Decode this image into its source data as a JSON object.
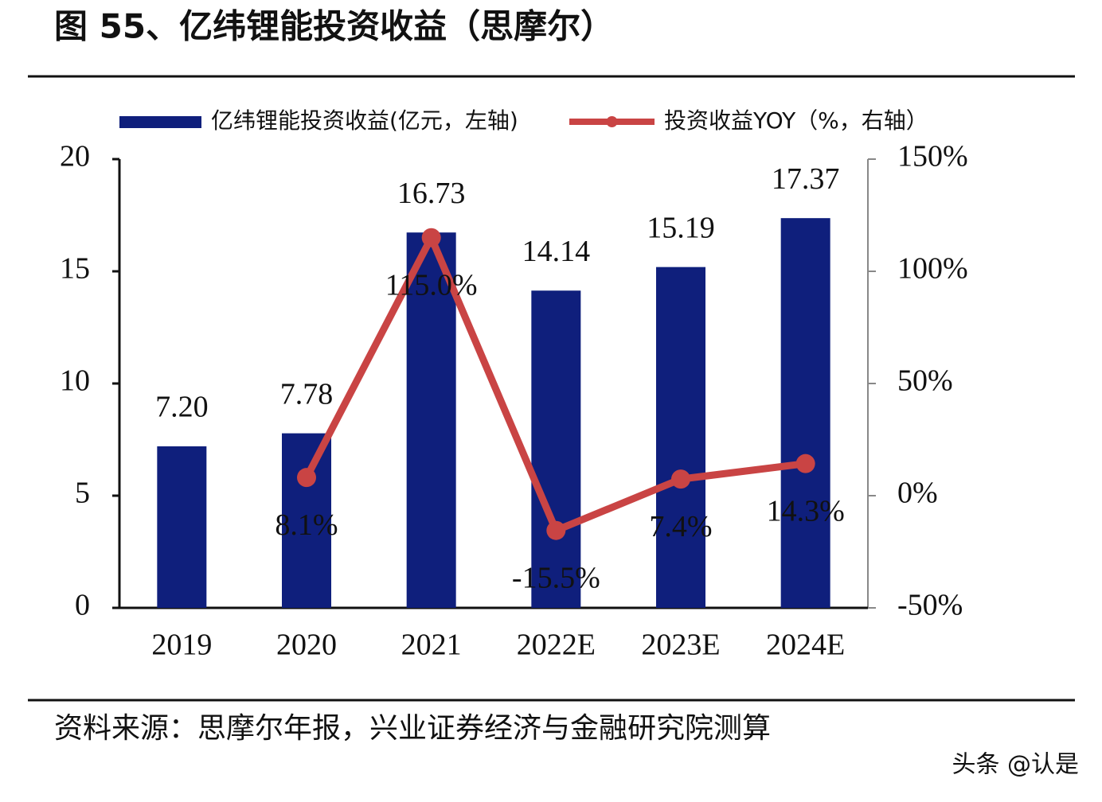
{
  "chart_data": {
    "type": "bar",
    "title": "图 55、亿纬锂能投资收益（思摩尔）",
    "categories": [
      "2019",
      "2020",
      "2021",
      "2022E",
      "2023E",
      "2024E"
    ],
    "series": [
      {
        "name": "亿纬锂能投资收益(亿元，左轴)",
        "type": "bar",
        "color": "#0f1f7c",
        "values": [
          7.2,
          7.78,
          16.73,
          14.14,
          15.19,
          17.37
        ],
        "value_labels": [
          "7.20",
          "7.78",
          "16.73",
          "14.14",
          "15.19",
          "17.37"
        ]
      },
      {
        "name": "投资收益YOY（%，右轴）",
        "type": "line",
        "axis": "y2",
        "color": "#c94444",
        "values": [
          null,
          8.1,
          115.0,
          -15.5,
          7.4,
          14.3
        ],
        "value_labels": [
          null,
          "8.1%",
          "115.0%",
          "-15.5%",
          "7.4%",
          "14.3%"
        ]
      }
    ],
    "ylim": [
      0,
      20
    ],
    "yticks": [
      0,
      5,
      10,
      15,
      20
    ],
    "y2lim": [
      -50,
      150
    ],
    "y2ticks": [
      {
        "value": -50,
        "label": "-50%"
      },
      {
        "value": 0,
        "label": "0%"
      },
      {
        "value": 50,
        "label": "50%"
      },
      {
        "value": 100,
        "label": "100%"
      },
      {
        "value": 150,
        "label": "150%"
      }
    ],
    "source": "资料来源：思摩尔年报，兴业证券经济与金融研究院测算",
    "watermark": "头条 @认是"
  }
}
